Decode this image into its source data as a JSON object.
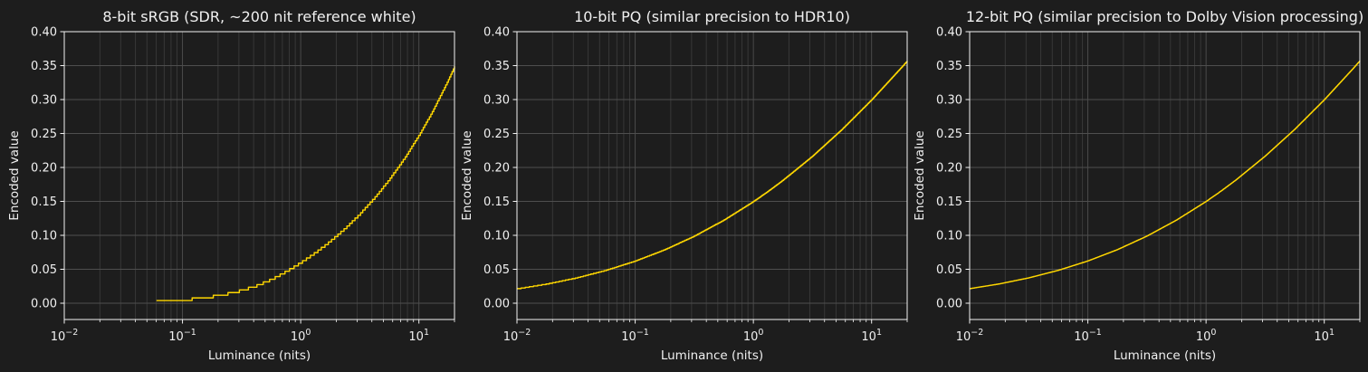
{
  "figure": {
    "background": "#1d1d1d",
    "text_color": "#f0f0f0",
    "spine_color": "#f2f2f2",
    "grid_major_color": "#4e4e4e",
    "grid_minor_color": "#3a3a3a"
  },
  "chart_data": [
    {
      "type": "line",
      "title": "8-bit sRGB (SDR, ~200 nit reference white)",
      "xlabel": "Luminance (nits)",
      "ylabel": "Encoded value",
      "xscale": "log",
      "xlim": [
        0.01,
        20
      ],
      "ylim": [
        -0.024,
        0.4
      ],
      "xticks": [
        0.01,
        0.1,
        1,
        10
      ],
      "xtick_labels": [
        "10^−2",
        "10^−1",
        "10^0",
        "10^1"
      ],
      "yticks": [
        0,
        0.05,
        0.1,
        0.15,
        0.2,
        0.25,
        0.3,
        0.35,
        0.4
      ],
      "ytick_labels": [
        "0.00",
        "0.05",
        "0.10",
        "0.15",
        "0.20",
        "0.25",
        "0.30",
        "0.35",
        "0.40"
      ],
      "grid": "x-major+minor, y-major",
      "line_color": "#ffd700",
      "quantization_bits": 8,
      "quantization_levels": 255,
      "quantize": "floor",
      "mask_zero_codes": true,
      "points": [
        [
          0.01,
          0.000646
        ],
        [
          0.0177828,
          0.001149
        ],
        [
          0.0316228,
          0.002043
        ],
        [
          0.0562341,
          0.003633
        ],
        [
          0.0749894,
          0.004844
        ],
        [
          0.1,
          0.00646
        ],
        [
          0.1333521,
          0.008615
        ],
        [
          0.1778279,
          0.011488
        ],
        [
          0.2371374,
          0.015319
        ],
        [
          0.3162278,
          0.020428
        ],
        [
          0.4216965,
          0.027242
        ],
        [
          0.5623413,
          0.036327
        ],
        [
          0.62616,
          0.04045
        ],
        [
          0.749894,
          0.047905
        ],
        [
          1.0,
          0.06101
        ],
        [
          1.333521,
          0.075809
        ],
        [
          1.7782794,
          0.092455
        ],
        [
          2.3713737,
          0.111241
        ],
        [
          3.1622777,
          0.132425
        ],
        [
          4.216965,
          0.156308
        ],
        [
          5.6234133,
          0.183225
        ],
        [
          7.4989421,
          0.213598
        ],
        [
          10.0,
          0.247801
        ],
        [
          13.335214,
          0.286381
        ],
        [
          17.782794,
          0.329914
        ],
        [
          20.0,
          0.349191
        ]
      ]
    },
    {
      "type": "line",
      "title": "10-bit PQ (similar precision to HDR10)",
      "xlabel": "Luminance (nits)",
      "ylabel": "Encoded value",
      "xscale": "log",
      "xlim": [
        0.01,
        20
      ],
      "ylim": [
        -0.024,
        0.4
      ],
      "xticks": [
        0.01,
        0.1,
        1,
        10
      ],
      "xtick_labels": [
        "10^−2",
        "10^−1",
        "10^0",
        "10^1"
      ],
      "yticks": [
        0,
        0.05,
        0.1,
        0.15,
        0.2,
        0.25,
        0.3,
        0.35,
        0.4
      ],
      "ytick_labels": [
        "0.00",
        "0.05",
        "0.10",
        "0.15",
        "0.20",
        "0.25",
        "0.30",
        "0.35",
        "0.40"
      ],
      "grid": "x-major+minor, y-major",
      "line_color": "#ffd700",
      "quantization_bits": 10,
      "quantization_levels": 1023,
      "quantize": "floor",
      "mask_zero_codes": false,
      "points": [
        [
          0.01,
          0.021545
        ],
        [
          0.0177828,
          0.028518
        ],
        [
          0.0316228,
          0.03743
        ],
        [
          0.0562341,
          0.048588
        ],
        [
          0.1,
          0.062336
        ],
        [
          0.1778279,
          0.079044
        ],
        [
          0.3162278,
          0.099017
        ],
        [
          0.5623413,
          0.1226
        ],
        [
          1.0,
          0.14995
        ],
        [
          1.333521,
          0.165126
        ],
        [
          1.7782794,
          0.181311
        ],
        [
          3.1622777,
          0.216779
        ],
        [
          5.6234133,
          0.25626
        ],
        [
          10.0,
          0.299722
        ],
        [
          17.782794,
          0.346957
        ],
        [
          20.0,
          0.35702
        ]
      ]
    },
    {
      "type": "line",
      "title": "12-bit PQ (similar precision to Dolby Vision processing)",
      "xlabel": "Luminance (nits)",
      "ylabel": "Encoded value",
      "xscale": "log",
      "xlim": [
        0.01,
        20
      ],
      "ylim": [
        -0.024,
        0.4
      ],
      "xticks": [
        0.01,
        0.1,
        1,
        10
      ],
      "xtick_labels": [
        "10^−2",
        "10^−1",
        "10^0",
        "10^1"
      ],
      "yticks": [
        0,
        0.05,
        0.1,
        0.15,
        0.2,
        0.25,
        0.3,
        0.35,
        0.4
      ],
      "ytick_labels": [
        "0.00",
        "0.05",
        "0.10",
        "0.15",
        "0.20",
        "0.25",
        "0.30",
        "0.35",
        "0.40"
      ],
      "grid": "x-major+minor, y-major",
      "line_color": "#ffd700",
      "quantization_bits": 12,
      "quantization_levels": 4095,
      "quantize": "floor",
      "mask_zero_codes": false,
      "points": [
        [
          0.01,
          0.021545
        ],
        [
          0.0177828,
          0.028518
        ],
        [
          0.0316228,
          0.03743
        ],
        [
          0.0562341,
          0.048588
        ],
        [
          0.1,
          0.062336
        ],
        [
          0.1778279,
          0.079044
        ],
        [
          0.3162278,
          0.099017
        ],
        [
          0.5623413,
          0.1226
        ],
        [
          1.0,
          0.14995
        ],
        [
          1.333521,
          0.165126
        ],
        [
          1.7782794,
          0.181311
        ],
        [
          3.1622777,
          0.216779
        ],
        [
          5.6234133,
          0.25626
        ],
        [
          10.0,
          0.299722
        ],
        [
          17.782794,
          0.346957
        ],
        [
          20.0,
          0.35702
        ]
      ]
    }
  ]
}
